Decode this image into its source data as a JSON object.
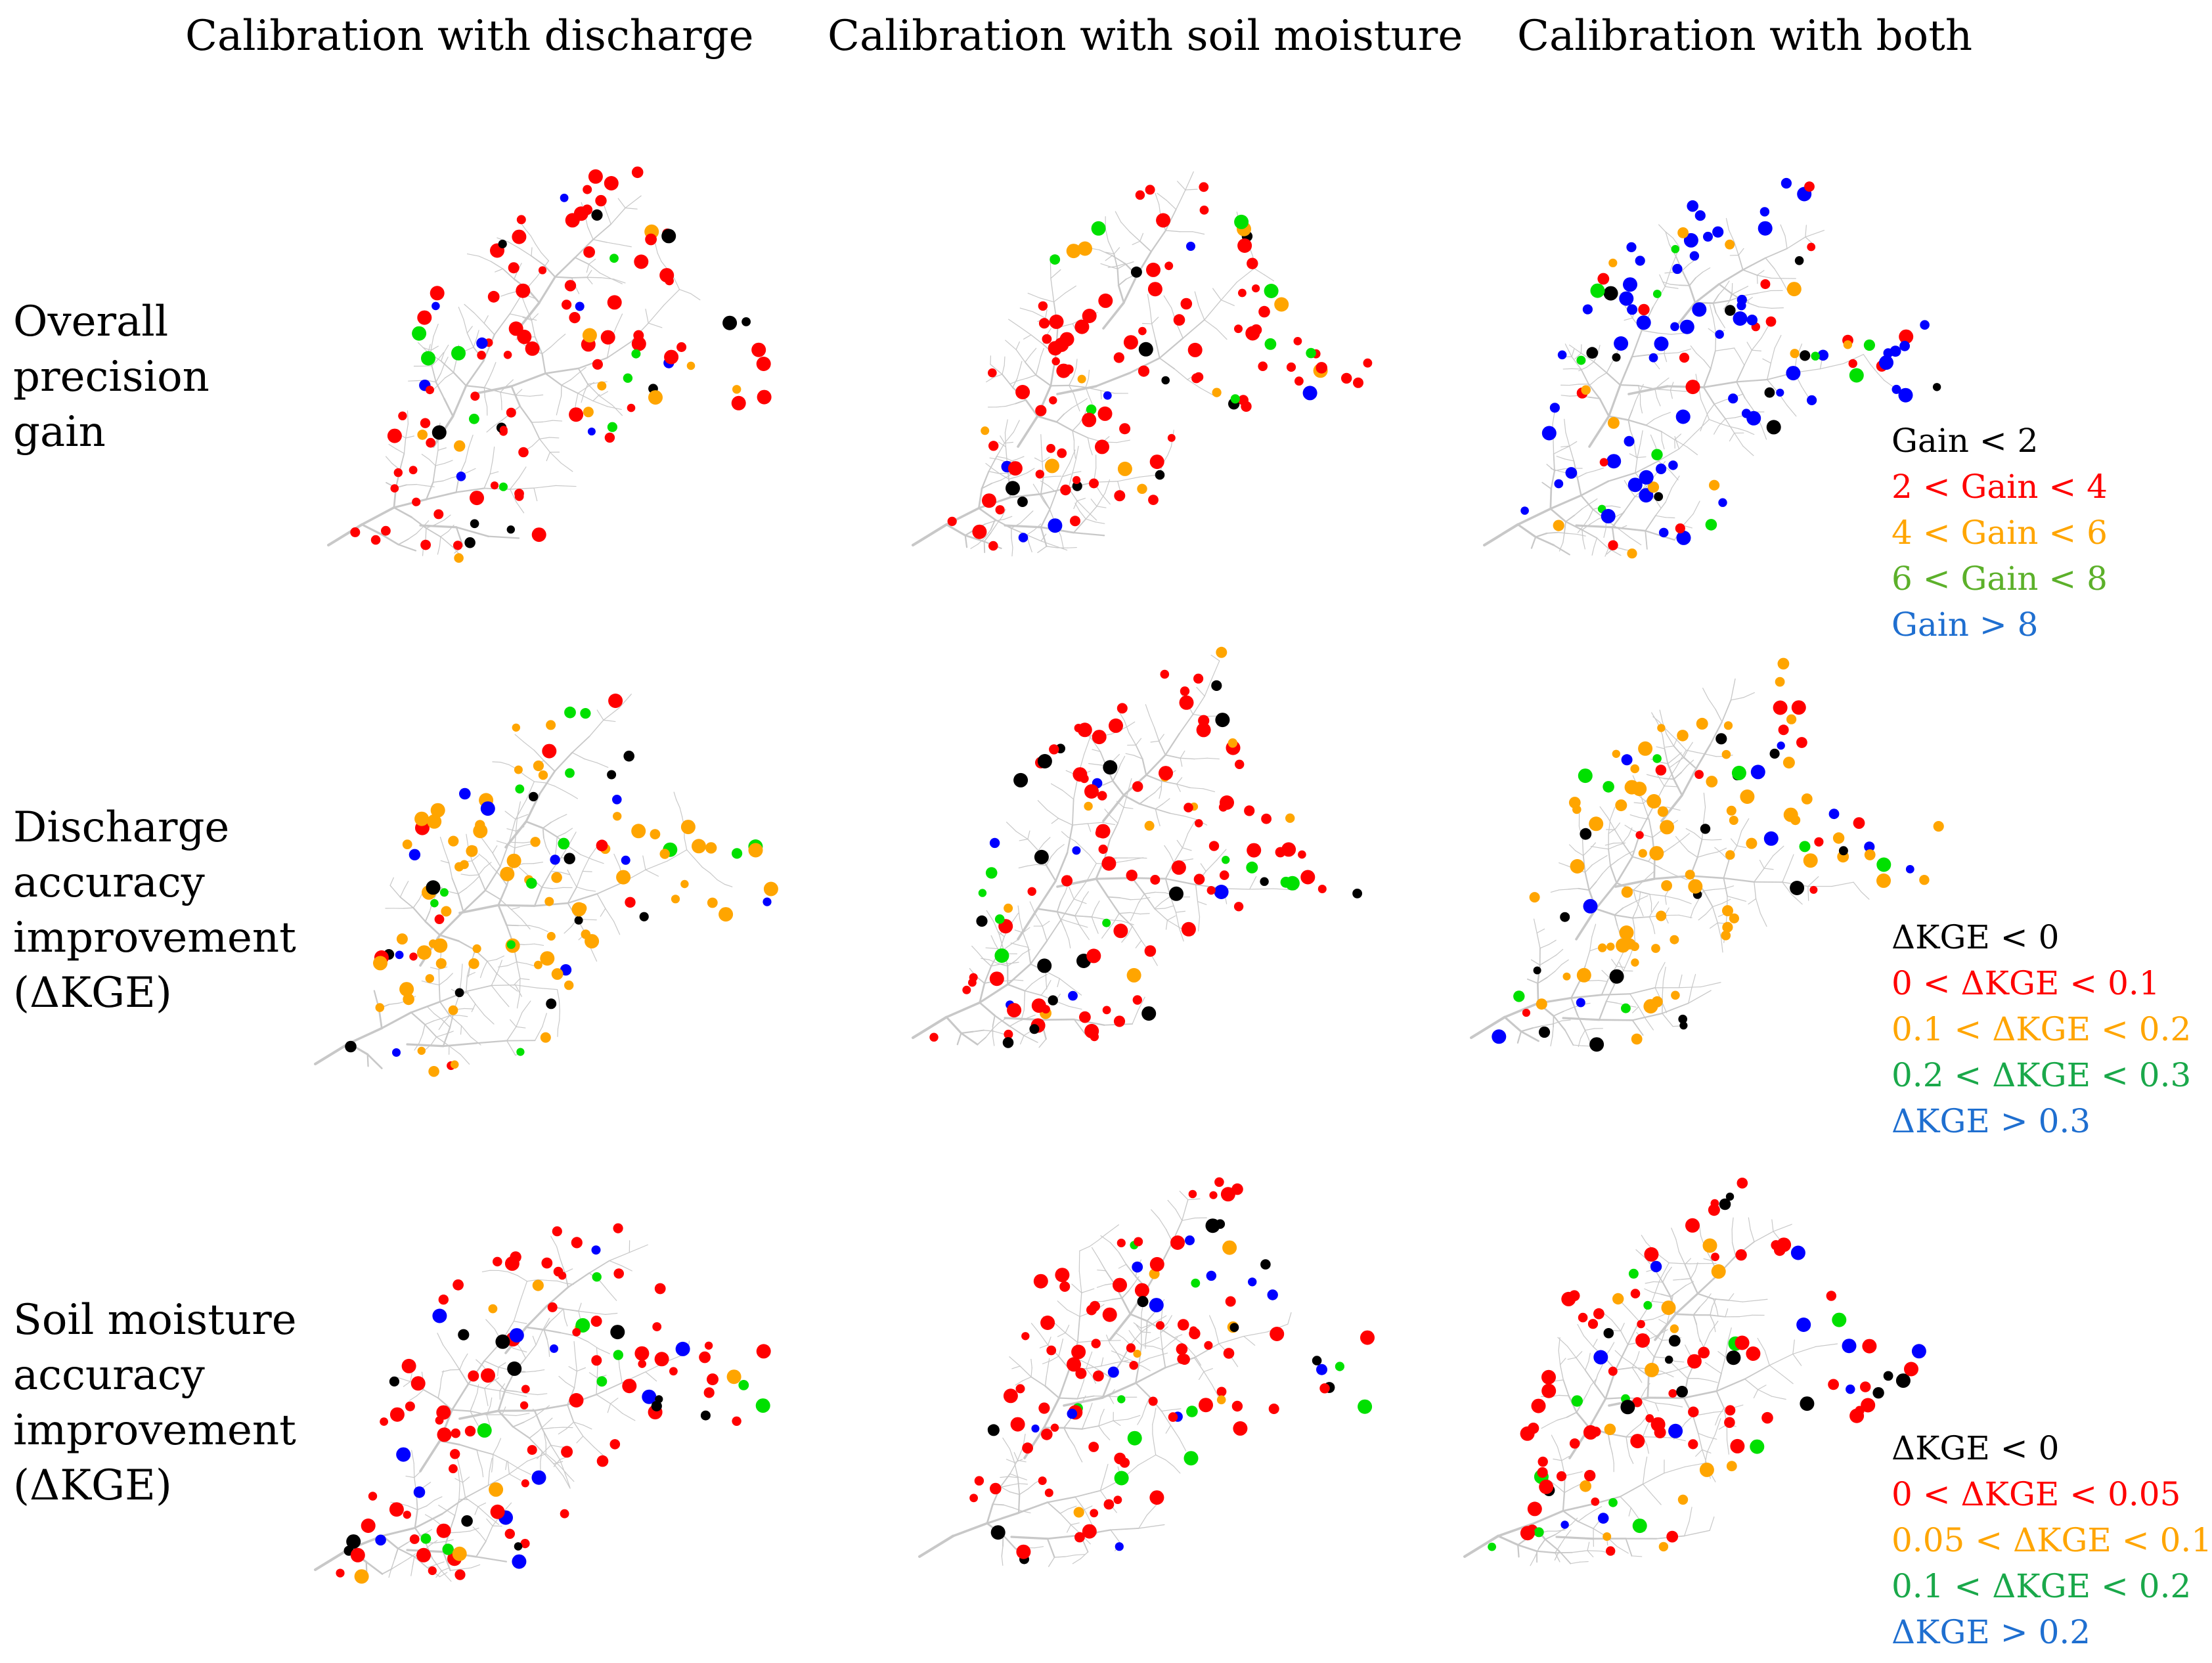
{
  "column_titles": [
    "Calibration with discharge",
    "Calibration with soil moisture",
    "Calibration with both"
  ],
  "row_titles": [
    [
      "Overall",
      "precision",
      "gain"
    ],
    [
      "Discharge",
      "accuracy",
      "improvement",
      "(ΔKGE)"
    ],
    [
      "Soil moisture",
      "accuracy",
      "improvement",
      "(ΔKGE)"
    ]
  ],
  "legends": [
    [
      {
        "label": "Gain < 2",
        "color": "#000000"
      },
      {
        "label": "2 < Gain < 4",
        "color": "#ff0000"
      },
      {
        "label": "4 < Gain < 6",
        "color": "#ffa500"
      },
      {
        "label": "6 < Gain < 8",
        "color": "#5cb02a"
      },
      {
        "label": "Gain > 8",
        "color": "#1f6fd0"
      }
    ],
    [
      {
        "label": "ΔKGE < 0",
        "color": "#000000"
      },
      {
        "label": "0 < ΔKGE < 0.1",
        "color": "#ff0000"
      },
      {
        "label": "0.1 < ΔKGE < 0.2",
        "color": "#ffa500"
      },
      {
        "label": "0.2 < ΔKGE < 0.3",
        "color": "#1aa84a"
      },
      {
        "label": "ΔKGE > 0.3",
        "color": "#1f6fd0"
      }
    ],
    [
      {
        "label": "ΔKGE < 0",
        "color": "#000000"
      },
      {
        "label": "0 < ΔKGE < 0.05",
        "color": "#ff0000"
      },
      {
        "label": "0.05 < ΔKGE < 0.1",
        "color": "#ffa500"
      },
      {
        "label": "0.1 < ΔKGE < 0.2",
        "color": "#1aa84a"
      },
      {
        "label": "ΔKGE > 0.2",
        "color": "#1f6fd0"
      }
    ]
  ],
  "marker_colors": {
    "black": "#000000",
    "red": "#ff0000",
    "orange": "#ffa500",
    "green": "#00e000",
    "blue": "#0000ff"
  },
  "river_color": "#c8c8c8",
  "panel_dominant_colors": [
    [
      "red",
      "red",
      "blue"
    ],
    [
      "orange",
      "red",
      "orange"
    ],
    [
      "red",
      "red",
      "red"
    ]
  ]
}
